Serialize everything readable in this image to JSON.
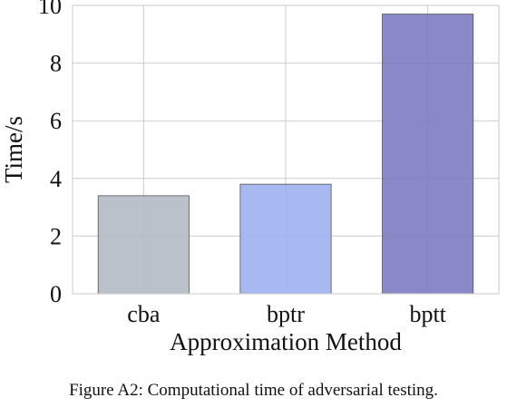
{
  "chart_data": {
    "type": "bar",
    "categories": [
      "cba",
      "bptr",
      "bptt"
    ],
    "values": [
      3.4,
      3.8,
      9.7
    ],
    "bar_colors": [
      "#b5bcc6",
      "#a0b3ef",
      "#7e7fc1"
    ],
    "xlabel": "Approximation Method",
    "ylabel": "Time/s",
    "ylim": [
      0,
      10
    ],
    "yticks": [
      0,
      2,
      4,
      6,
      8,
      10
    ],
    "grid": true
  },
  "caption": "Figure A2: Computational time of adversarial testing."
}
